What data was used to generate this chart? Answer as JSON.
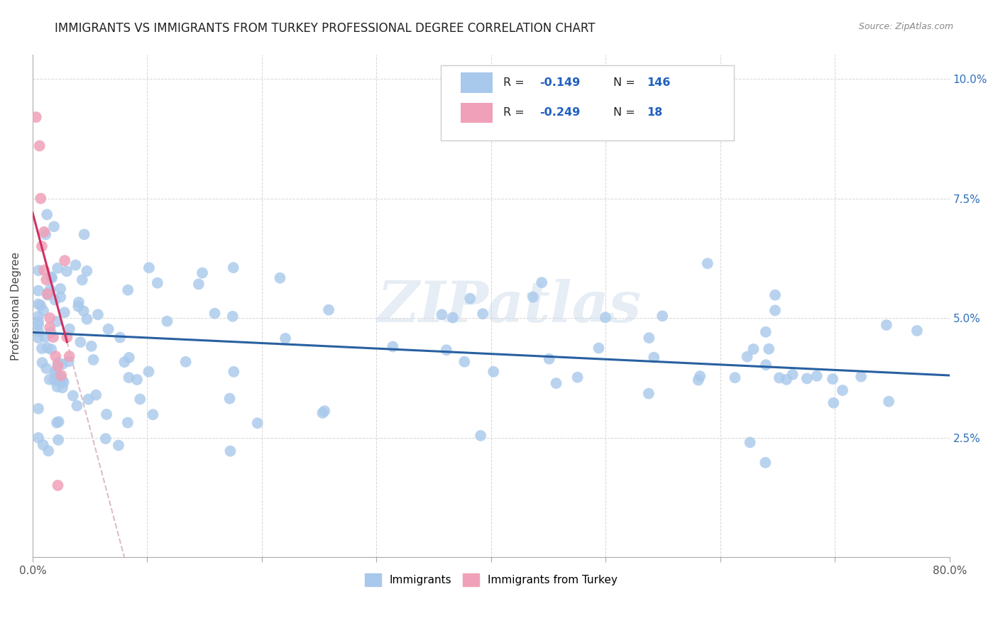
{
  "title": "IMMIGRANTS VS IMMIGRANTS FROM TURKEY PROFESSIONAL DEGREE CORRELATION CHART",
  "source": "Source: ZipAtlas.com",
  "ylabel": "Professional Degree",
  "x_min": 0.0,
  "x_max": 0.8,
  "y_min": 0.0,
  "y_max": 0.105,
  "color_blue": "#A8C8EC",
  "color_pink": "#F0A0B8",
  "color_trendline_blue": "#2860A0",
  "color_trendline_pink": "#D03060",
  "color_trendline_dashed": "#D0A0B0",
  "background_color": "#FFFFFF",
  "grid_color": "#CCCCCC",
  "title_fontsize": 12,
  "axis_label_fontsize": 11,
  "tick_fontsize": 11,
  "watermark": "ZIPatlas",
  "legend_label1": "R = ",
  "legend_val1": "-0.149",
  "legend_n1": "N = ",
  "legend_nval1": "146",
  "legend_label2": "R = ",
  "legend_val2": "-0.249",
  "legend_n2": "N = ",
  "legend_nval2": "18"
}
